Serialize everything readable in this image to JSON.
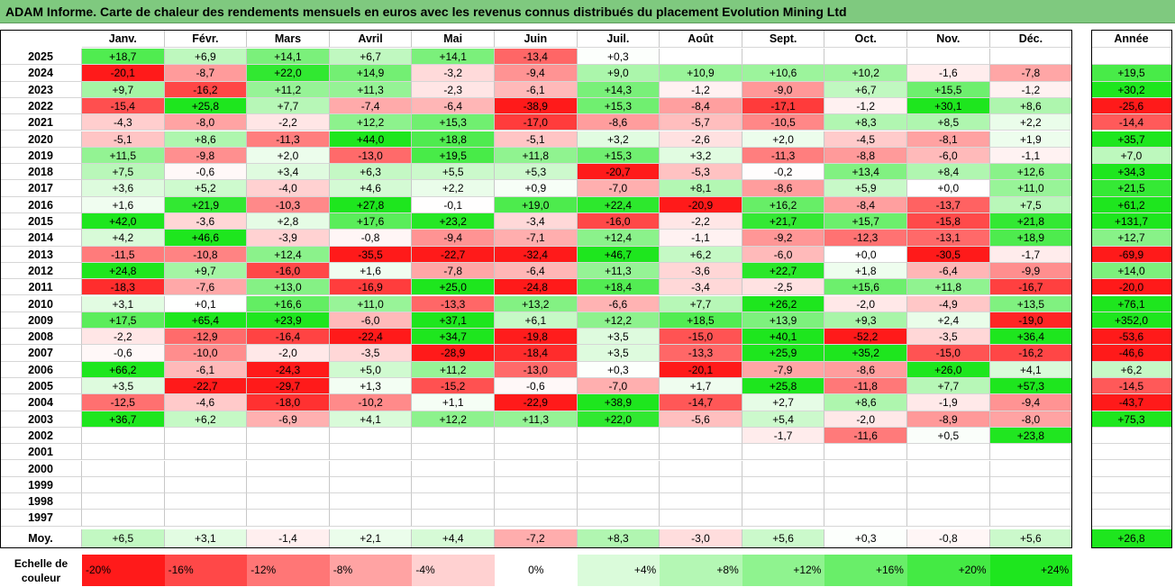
{
  "title": "ADAM Informe. Carte de chaleur des rendements mensuels en euros avec les revenus connus distribués du placement Evolution Mining Ltd",
  "chart_data": {
    "type": "heatmap",
    "columns": [
      "Janv.",
      "Févr.",
      "Mars",
      "Avril",
      "Mai",
      "Juin",
      "Juil.",
      "Août",
      "Sept.",
      "Oct.",
      "Nov.",
      "Déc."
    ],
    "annual_header": "Année",
    "rows": [
      {
        "year": "2025",
        "months": [
          "+18,7",
          "+6,9",
          "+14,1",
          "+6,7",
          "+14,1",
          "-13,4",
          "+0,3",
          "",
          "",
          "",
          "",
          ""
        ],
        "annual": ""
      },
      {
        "year": "2024",
        "months": [
          "-20,1",
          "-8,7",
          "+22,0",
          "+14,9",
          "-3,2",
          "-9,4",
          "+9,0",
          "+10,9",
          "+10,6",
          "+10,2",
          "-1,6",
          "-7,8"
        ],
        "annual": "+19,5"
      },
      {
        "year": "2023",
        "months": [
          "+9,7",
          "-16,2",
          "+11,2",
          "+11,3",
          "-2,3",
          "-6,1",
          "+14,3",
          "-1,2",
          "-9,0",
          "+6,7",
          "+15,5",
          "-1,2"
        ],
        "annual": "+30,2"
      },
      {
        "year": "2022",
        "months": [
          "-15,4",
          "+25,8",
          "+7,7",
          "-7,4",
          "-6,4",
          "-38,9",
          "+15,3",
          "-8,4",
          "-17,1",
          "-1,2",
          "+30,1",
          "+8,6"
        ],
        "annual": "-25,6"
      },
      {
        "year": "2021",
        "months": [
          "-4,3",
          "-8,0",
          "-2,2",
          "+12,2",
          "+15,3",
          "-17,0",
          "-8,6",
          "-5,7",
          "-10,5",
          "+8,3",
          "+8,5",
          "+2,2"
        ],
        "annual": "-14,4"
      },
      {
        "year": "2020",
        "months": [
          "-5,1",
          "+8,6",
          "-11,3",
          "+44,0",
          "+18,8",
          "-5,1",
          "+3,2",
          "-2,6",
          "+2,0",
          "-4,5",
          "-8,1",
          "+1,9"
        ],
        "annual": "+35,7"
      },
      {
        "year": "2019",
        "months": [
          "+11,5",
          "-9,8",
          "+2,0",
          "-13,0",
          "+19,5",
          "+11,8",
          "+15,3",
          "+3,2",
          "-11,3",
          "-8,8",
          "-6,0",
          "-1,1"
        ],
        "annual": "+7,0"
      },
      {
        "year": "2018",
        "months": [
          "+7,5",
          "-0,6",
          "+3,4",
          "+6,3",
          "+5,5",
          "+5,3",
          "-20,7",
          "-5,3",
          "-0,2",
          "+13,4",
          "+8,4",
          "+12,6"
        ],
        "annual": "+34,3"
      },
      {
        "year": "2017",
        "months": [
          "+3,6",
          "+5,2",
          "-4,0",
          "+4,6",
          "+2,2",
          "+0,9",
          "-7,0",
          "+8,1",
          "-8,6",
          "+5,9",
          "+0,0",
          "+11,0"
        ],
        "annual": "+21,5"
      },
      {
        "year": "2016",
        "months": [
          "+1,6",
          "+21,9",
          "-10,3",
          "+27,8",
          "-0,1",
          "+19,0",
          "+22,4",
          "-20,9",
          "+16,2",
          "-8,4",
          "-13,7",
          "+7,5"
        ],
        "annual": "+61,2"
      },
      {
        "year": "2015",
        "months": [
          "+42,0",
          "-3,6",
          "+2,8",
          "+17,6",
          "+23,2",
          "-3,4",
          "-16,0",
          "-2,2",
          "+21,7",
          "+15,7",
          "-15,8",
          "+21,8"
        ],
        "annual": "+131,7"
      },
      {
        "year": "2014",
        "months": [
          "+4,2",
          "+46,6",
          "-3,9",
          "-0,8",
          "-9,4",
          "-7,1",
          "+12,4",
          "-1,1",
          "-9,2",
          "-12,3",
          "-13,1",
          "+18,9"
        ],
        "annual": "+12,7"
      },
      {
        "year": "2013",
        "months": [
          "-11,5",
          "-10,8",
          "+12,4",
          "-35,5",
          "-22,7",
          "-32,4",
          "+46,7",
          "+6,2",
          "-6,0",
          "+0,0",
          "-30,5",
          "-1,7"
        ],
        "annual": "-69,9"
      },
      {
        "year": "2012",
        "months": [
          "+24,8",
          "+9,7",
          "-16,0",
          "+1,6",
          "-7,8",
          "-6,4",
          "+11,3",
          "-3,6",
          "+22,7",
          "+1,8",
          "-6,4",
          "-9,9"
        ],
        "annual": "+14,0"
      },
      {
        "year": "2011",
        "months": [
          "-18,3",
          "-7,6",
          "+13,0",
          "-16,9",
          "+25,0",
          "-24,8",
          "+18,4",
          "-3,4",
          "-2,5",
          "+15,6",
          "+11,8",
          "-16,7"
        ],
        "annual": "-20,0"
      },
      {
        "year": "2010",
        "months": [
          "+3,1",
          "+0,1",
          "+16,6",
          "+11,0",
          "-13,3",
          "+13,2",
          "-6,6",
          "+7,7",
          "+26,2",
          "-2,0",
          "-4,9",
          "+13,5"
        ],
        "annual": "+76,1"
      },
      {
        "year": "2009",
        "months": [
          "+17,5",
          "+65,4",
          "+23,9",
          "-6,0",
          "+37,1",
          "+6,1",
          "+12,2",
          "+18,5",
          "+13,9",
          "+9,3",
          "+2,4",
          "-19,0"
        ],
        "annual": "+352,0"
      },
      {
        "year": "2008",
        "months": [
          "-2,2",
          "-12,9",
          "-16,4",
          "-22,4",
          "+34,7",
          "-19,8",
          "+3,5",
          "-15,0",
          "+40,1",
          "-52,2",
          "-3,5",
          "+36,4"
        ],
        "annual": "-53,6"
      },
      {
        "year": "2007",
        "months": [
          "-0,6",
          "-10,0",
          "-2,0",
          "-3,5",
          "-28,9",
          "-18,4",
          "+3,5",
          "-13,3",
          "+25,9",
          "+35,2",
          "-15,0",
          "-16,2"
        ],
        "annual": "-46,6"
      },
      {
        "year": "2006",
        "months": [
          "+66,2",
          "-6,1",
          "-24,3",
          "+5,0",
          "+11,2",
          "-13,0",
          "+0,3",
          "-20,1",
          "-7,9",
          "-8,6",
          "+26,0",
          "+4,1"
        ],
        "annual": "+6,2"
      },
      {
        "year": "2005",
        "months": [
          "+3,5",
          "-22,7",
          "-29,7",
          "+1,3",
          "-15,2",
          "-0,6",
          "-7,0",
          "+1,7",
          "+25,8",
          "-11,8",
          "+7,7",
          "+57,3"
        ],
        "annual": "-14,5"
      },
      {
        "year": "2004",
        "months": [
          "-12,5",
          "-4,6",
          "-18,0",
          "-10,2",
          "+1,1",
          "-22,9",
          "+38,9",
          "-14,7",
          "+2,7",
          "+8,6",
          "-1,9",
          "-9,4"
        ],
        "annual": "-43,7"
      },
      {
        "year": "2003",
        "months": [
          "+36,7",
          "+6,2",
          "-6,9",
          "+4,1",
          "+12,2",
          "+11,3",
          "+22,0",
          "-5,6",
          "+5,4",
          "-2,0",
          "-8,9",
          "-8,0"
        ],
        "annual": "+75,3"
      },
      {
        "year": "2002",
        "months": [
          "",
          "",
          "",
          "",
          "",
          "",
          "",
          "",
          "-1,7",
          "-11,6",
          "+0,5",
          "+23,8"
        ],
        "annual": ""
      },
      {
        "year": "2001",
        "months": [
          "",
          "",
          "",
          "",
          "",
          "",
          "",
          "",
          "",
          "",
          "",
          ""
        ],
        "annual": ""
      },
      {
        "year": "2000",
        "months": [
          "",
          "",
          "",
          "",
          "",
          "",
          "",
          "",
          "",
          "",
          "",
          ""
        ],
        "annual": ""
      },
      {
        "year": "1999",
        "months": [
          "",
          "",
          "",
          "",
          "",
          "",
          "",
          "",
          "",
          "",
          "",
          ""
        ],
        "annual": ""
      },
      {
        "year": "1998",
        "months": [
          "",
          "",
          "",
          "",
          "",
          "",
          "",
          "",
          "",
          "",
          "",
          ""
        ],
        "annual": ""
      },
      {
        "year": "1997",
        "months": [
          "",
          "",
          "",
          "",
          "",
          "",
          "",
          "",
          "",
          "",
          "",
          ""
        ],
        "annual": ""
      }
    ],
    "average": {
      "label": "Moy.",
      "months": [
        "+6,5",
        "+3,1",
        "-1,4",
        "+2,1",
        "+4,4",
        "-7,2",
        "+8,3",
        "-3,0",
        "+5,6",
        "+0,3",
        "-0,8",
        "+5,6"
      ],
      "annual": "+26,8"
    },
    "color_scale": {
      "label_line1": "Echelle de",
      "label_line2": "couleur",
      "steps": [
        {
          "label": "-20%",
          "value": -20
        },
        {
          "label": "-16%",
          "value": -16
        },
        {
          "label": "-12%",
          "value": -12
        },
        {
          "label": "-8%",
          "value": -8
        },
        {
          "label": "-4%",
          "value": -4
        },
        {
          "label": "0%",
          "value": 0
        },
        {
          "label": "+4%",
          "value": 4
        },
        {
          "label": "+8%",
          "value": 8
        },
        {
          "label": "+12%",
          "value": 12
        },
        {
          "label": "+16%",
          "value": 16
        },
        {
          "label": "+20%",
          "value": 20
        },
        {
          "label": "+24%",
          "value": 24
        }
      ]
    },
    "colors": {
      "negative_max": "#ff1a1a",
      "neutral": "#ffffff",
      "positive_max": "#1ee61e",
      "title_background": "#7fc97f"
    }
  }
}
